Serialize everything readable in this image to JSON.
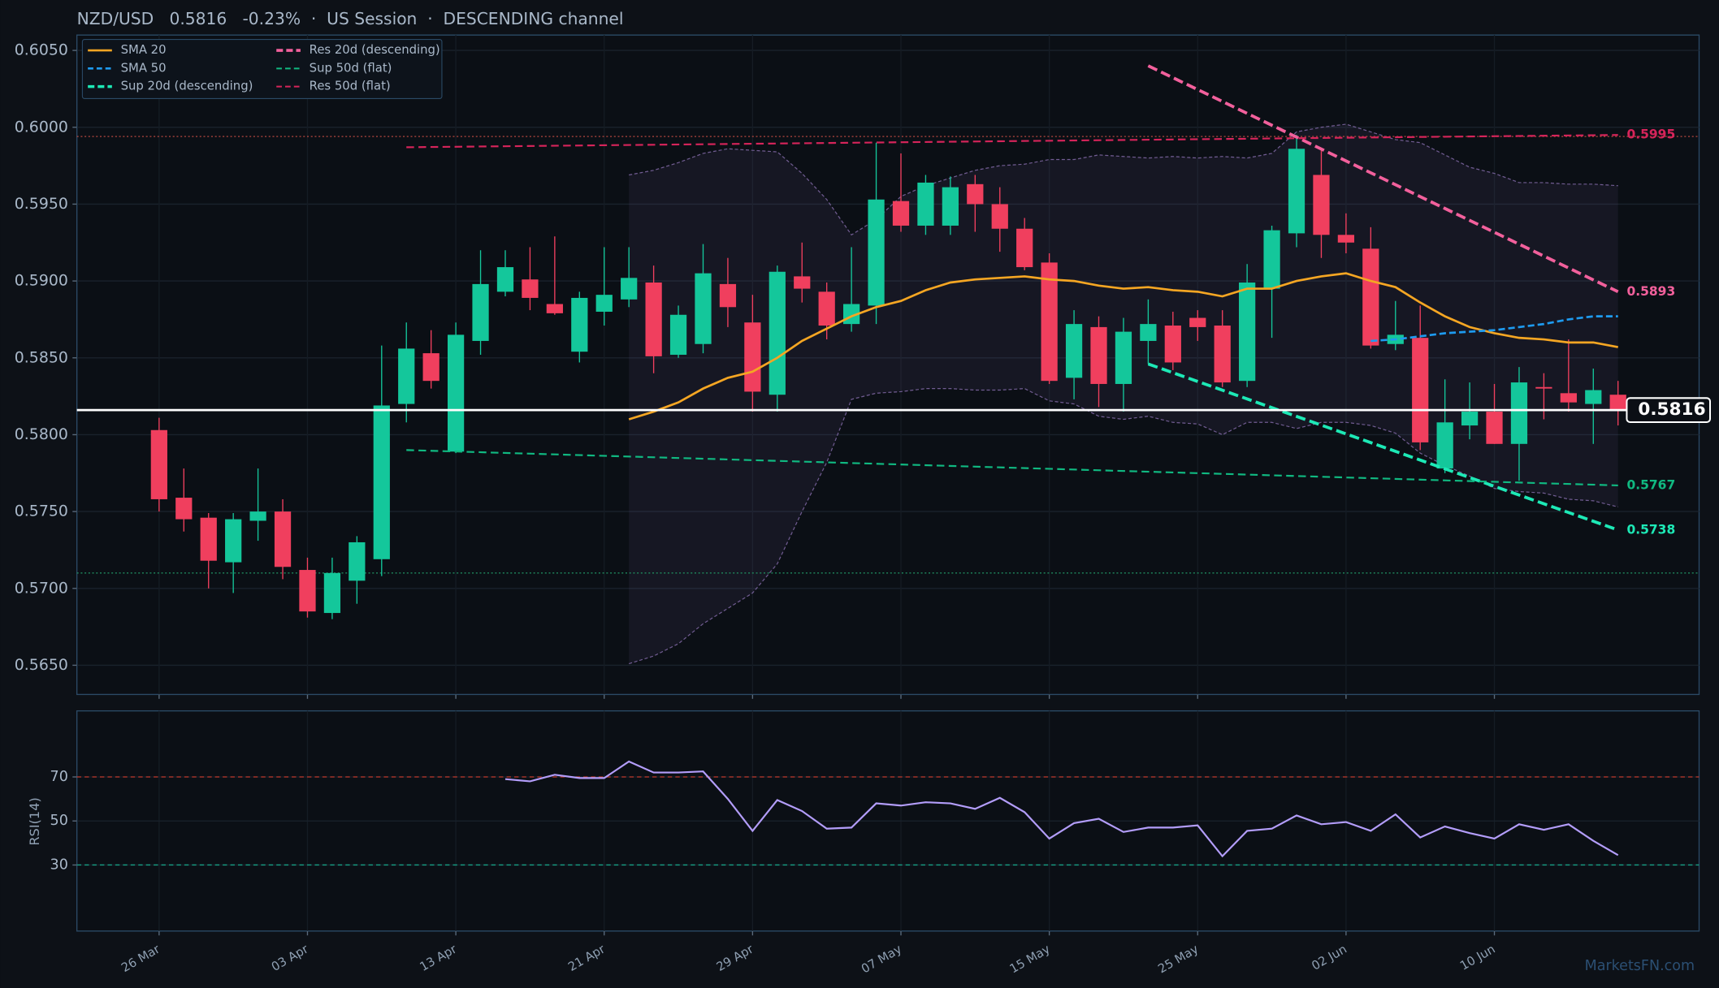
{
  "watermark": "MarketsFN.com",
  "chart_data": [
    {
      "type": "candlestick",
      "title": "NZD/USD   0.5816   -0.23%  ·  US Session  ·  DESCENDING channel",
      "categories": [
        "26 Mar",
        null,
        null,
        null,
        null,
        null,
        "03 Apr",
        null,
        null,
        null,
        null,
        null,
        "13 Apr",
        null,
        null,
        null,
        null,
        null,
        "21 Apr",
        null,
        null,
        null,
        null,
        null,
        "29 Apr",
        null,
        null,
        null,
        null,
        null,
        "07 May",
        null,
        null,
        null,
        null,
        null,
        "15 May",
        null,
        null,
        null,
        null,
        null,
        "25 May",
        null,
        null,
        null,
        null,
        null,
        "02 Jun",
        null,
        null,
        null,
        null,
        null,
        "10 Jun",
        null,
        null,
        null,
        null,
        null
      ],
      "open": [
        0.5803,
        0.5759,
        0.5746,
        0.5717,
        0.5744,
        0.575,
        0.5712,
        0.5684,
        0.5705,
        0.5719,
        0.582,
        0.5853,
        0.5789,
        0.5861,
        0.5893,
        0.5901,
        0.5885,
        0.5854,
        0.588,
        0.5888,
        0.5899,
        0.5852,
        0.5859,
        0.5898,
        0.5873,
        0.5826,
        0.5903,
        0.5893,
        0.5872,
        0.5884,
        0.5952,
        0.5936,
        0.5936,
        0.5963,
        0.595,
        0.5934,
        0.5912,
        0.5837,
        0.587,
        0.5833,
        0.5861,
        0.5871,
        0.5876,
        0.5871,
        0.5835,
        0.5895,
        0.5931,
        0.5969,
        0.593,
        0.5921,
        0.5859,
        0.5863,
        0.5778,
        0.5806,
        0.5815,
        0.5794,
        0.5831,
        0.5827,
        0.582,
        0.5826
      ],
      "high": [
        0.5811,
        0.5778,
        0.5749,
        0.5749,
        0.5778,
        0.5758,
        0.572,
        0.572,
        0.5734,
        0.5858,
        0.5873,
        0.5868,
        0.5873,
        0.592,
        0.592,
        0.5922,
        0.5929,
        0.5893,
        0.5922,
        0.5922,
        0.591,
        0.5884,
        0.5924,
        0.5915,
        0.5891,
        0.591,
        0.5925,
        0.5899,
        0.5922,
        0.599,
        0.5983,
        0.5969,
        0.5968,
        0.5969,
        0.5961,
        0.5941,
        0.5918,
        0.5881,
        0.5877,
        0.5876,
        0.5888,
        0.588,
        0.5881,
        0.5881,
        0.5911,
        0.5936,
        0.5995,
        0.5986,
        0.5944,
        0.5935,
        0.5887,
        0.5884,
        0.5836,
        0.5834,
        0.5833,
        0.5844,
        0.584,
        0.5862,
        0.5843,
        0.5835
      ],
      "low": [
        0.575,
        0.5737,
        0.57,
        0.5697,
        0.5731,
        0.5706,
        0.5681,
        0.568,
        0.569,
        0.5708,
        0.5808,
        0.583,
        0.5788,
        0.5852,
        0.589,
        0.5881,
        0.5878,
        0.5847,
        0.5871,
        0.5883,
        0.584,
        0.585,
        0.5853,
        0.587,
        0.5815,
        0.5815,
        0.5886,
        0.5862,
        0.5867,
        0.5872,
        0.5932,
        0.593,
        0.593,
        0.5932,
        0.5919,
        0.5907,
        0.5833,
        0.5823,
        0.5818,
        0.5815,
        0.5846,
        0.5842,
        0.5861,
        0.5831,
        0.5831,
        0.5863,
        0.5922,
        0.5915,
        0.5918,
        0.5856,
        0.5855,
        0.579,
        0.5775,
        0.5797,
        0.5794,
        0.577,
        0.581,
        0.5815,
        0.5794,
        0.5806
      ],
      "close": [
        0.5758,
        0.5745,
        0.5718,
        0.5745,
        0.575,
        0.5714,
        0.5685,
        0.571,
        0.573,
        0.5819,
        0.5856,
        0.5835,
        0.5865,
        0.5898,
        0.5909,
        0.5889,
        0.5879,
        0.5889,
        0.5891,
        0.5902,
        0.5851,
        0.5878,
        0.5905,
        0.5883,
        0.5828,
        0.5906,
        0.5895,
        0.5871,
        0.5885,
        0.5953,
        0.5936,
        0.5964,
        0.5961,
        0.595,
        0.5934,
        0.5909,
        0.5835,
        0.5872,
        0.5833,
        0.5867,
        0.5872,
        0.5847,
        0.587,
        0.5834,
        0.5899,
        0.5933,
        0.5986,
        0.593,
        0.5925,
        0.5858,
        0.5865,
        0.5795,
        0.5808,
        0.5815,
        0.5794,
        0.5834,
        0.583,
        0.5821,
        0.5829,
        0.5816
      ],
      "up_color": "#14c79b",
      "down_color": "#f03f5e",
      "ylim": [
        0.5631,
        0.606
      ],
      "yticks": [
        {
          "value": 0.565,
          "label": "0.5650"
        },
        {
          "value": 0.57,
          "label": "0.5700"
        },
        {
          "value": 0.575,
          "label": "0.5750"
        },
        {
          "value": 0.58,
          "label": "0.5800"
        },
        {
          "value": 0.585,
          "label": "0.5850"
        },
        {
          "value": 0.59,
          "label": "0.5900"
        },
        {
          "value": 0.595,
          "label": "0.5950"
        },
        {
          "value": 0.6,
          "label": "0.6000"
        },
        {
          "value": 0.605,
          "label": "0.6050"
        }
      ],
      "grid": true,
      "legend": "upper left",
      "series": [
        {
          "name": "SMA 20",
          "color": "#f5a623",
          "dashed": false,
          "values": [
            null,
            null,
            null,
            null,
            null,
            null,
            null,
            null,
            null,
            null,
            null,
            null,
            null,
            null,
            null,
            null,
            null,
            null,
            null,
            0.581,
            0.5815,
            0.5821,
            0.583,
            0.5837,
            0.5841,
            0.585,
            0.5861,
            0.5869,
            0.5877,
            0.5883,
            0.5887,
            0.5894,
            0.5899,
            0.5901,
            0.5902,
            0.5903,
            0.5901,
            0.59,
            0.5897,
            0.5895,
            0.5896,
            0.5894,
            0.5893,
            0.589,
            0.5895,
            0.5895,
            0.59,
            0.5903,
            0.5905,
            0.59,
            0.5896,
            0.5886,
            0.5877,
            0.587,
            0.5866,
            0.5863,
            0.5862,
            0.586,
            0.586,
            0.5857
          ]
        },
        {
          "name": "SMA 50",
          "color": "#1e9bf0",
          "dashed": true,
          "values": [
            null,
            null,
            null,
            null,
            null,
            null,
            null,
            null,
            null,
            null,
            null,
            null,
            null,
            null,
            null,
            null,
            null,
            null,
            null,
            null,
            null,
            null,
            null,
            null,
            null,
            null,
            null,
            null,
            null,
            null,
            null,
            null,
            null,
            null,
            null,
            null,
            null,
            null,
            null,
            null,
            null,
            null,
            null,
            null,
            null,
            null,
            null,
            null,
            null,
            0.5861,
            0.5862,
            0.5864,
            0.5866,
            0.5867,
            0.5868,
            0.587,
            0.5872,
            0.5875,
            0.5877,
            0.5877
          ]
        }
      ],
      "bands": {
        "color": "#8a6fb0",
        "upper": [
          null,
          null,
          null,
          null,
          null,
          null,
          null,
          null,
          null,
          null,
          null,
          null,
          null,
          null,
          null,
          null,
          null,
          null,
          null,
          0.5969,
          0.5972,
          0.5977,
          0.5983,
          0.5986,
          0.5985,
          0.5984,
          0.597,
          0.5953,
          0.593,
          0.594,
          0.5955,
          0.5962,
          0.5967,
          0.5972,
          0.5975,
          0.5976,
          0.5979,
          0.5979,
          0.5982,
          0.5981,
          0.598,
          0.5981,
          0.598,
          0.5981,
          0.598,
          0.5983,
          0.5997,
          0.6,
          0.6002,
          0.5997,
          0.5992,
          0.599,
          0.5982,
          0.5974,
          0.597,
          0.5964,
          0.5964,
          0.5963,
          0.5963,
          0.5962
        ],
        "lower": [
          null,
          null,
          null,
          null,
          null,
          null,
          null,
          null,
          null,
          null,
          null,
          null,
          null,
          null,
          null,
          null,
          null,
          null,
          null,
          0.5651,
          0.5656,
          0.5664,
          0.5677,
          0.5687,
          0.5697,
          0.5716,
          0.575,
          0.5782,
          0.5823,
          0.5827,
          0.5828,
          0.583,
          0.583,
          0.5829,
          0.5829,
          0.583,
          0.5822,
          0.582,
          0.5812,
          0.581,
          0.5812,
          0.5808,
          0.5807,
          0.58,
          0.5808,
          0.5808,
          0.5804,
          0.5808,
          0.5808,
          0.5806,
          0.5801,
          0.5788,
          0.578,
          0.5773,
          0.5765,
          0.5763,
          0.5762,
          0.5758,
          0.5757,
          0.5753
        ]
      },
      "trendlines": [
        {
          "name": "Sup 20d (descending)",
          "color": "#1de9b6",
          "bold": true,
          "x": [
            40,
            59
          ],
          "values": [
            0.5846,
            0.5738
          ],
          "label": "0.5738"
        },
        {
          "name": "Res 20d (descending)",
          "color": "#f2609c",
          "bold": true,
          "x": [
            40,
            59
          ],
          "values": [
            0.604,
            0.5893
          ],
          "label": "0.5893"
        },
        {
          "name": "Sup 50d (flat)",
          "color": "#10b981",
          "bold": false,
          "x": [
            10,
            59
          ],
          "values": [
            0.579,
            0.5767
          ],
          "label": "0.5767"
        },
        {
          "name": "Res 50d (flat)",
          "color": "#d6245a",
          "bold": false,
          "x": [
            10,
            59
          ],
          "values": [
            0.5987,
            0.5995
          ],
          "label": "0.5995"
        }
      ],
      "levels": [
        {
          "value": 0.5994,
          "color": "#b5473f"
        },
        {
          "value": 0.571,
          "color": "#1f8a5e"
        }
      ],
      "last": {
        "value": 0.5816,
        "label": "0.5816",
        "color": "#ffffff"
      }
    },
    {
      "type": "line",
      "ylabel": "RSI(14)",
      "ylim": [
        0,
        100
      ],
      "yticks": [
        30,
        50,
        70
      ],
      "grid": true,
      "levels": [
        {
          "value": 70,
          "color": "#c0392b"
        },
        {
          "value": 30,
          "color": "#16a085"
        }
      ],
      "series": [
        {
          "color": "#b39dfa",
          "values": [
            null,
            null,
            null,
            null,
            null,
            null,
            null,
            null,
            null,
            null,
            null,
            null,
            null,
            null,
            69,
            68,
            71,
            69.5,
            69.5,
            77,
            72,
            72,
            72.5,
            60,
            45.5,
            59.5,
            54.5,
            46.5,
            47,
            58,
            57,
            58.5,
            58,
            55.5,
            60.5,
            54,
            42,
            49,
            51,
            45,
            47,
            47,
            48,
            34,
            45.5,
            46.5,
            52.5,
            48.5,
            49.5,
            45.5,
            53,
            42.5,
            47.5,
            44.5,
            42,
            48.5,
            46,
            48.5,
            41,
            34.5
          ]
        }
      ]
    }
  ]
}
